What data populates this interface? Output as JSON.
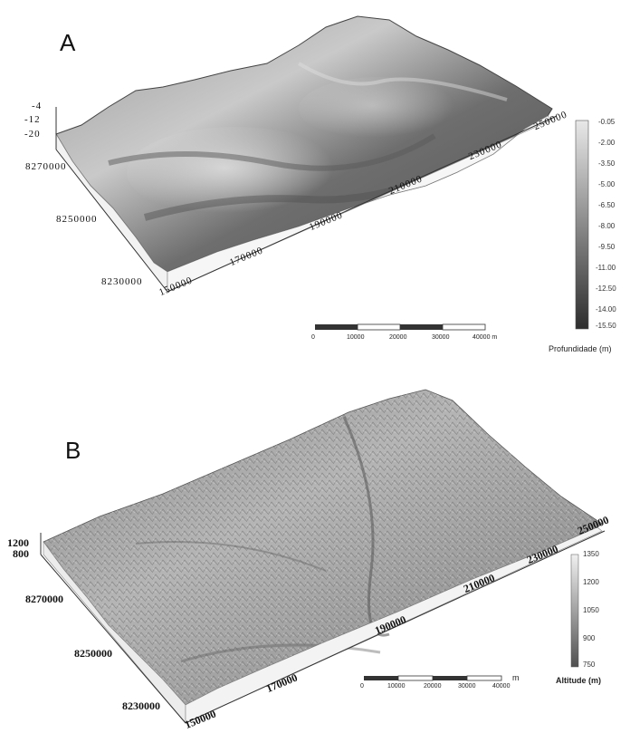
{
  "panelA": {
    "letter": "A",
    "z_ticks": [
      "-4",
      "-12",
      "-20"
    ],
    "y_ticks": [
      "8270000",
      "8250000",
      "8230000"
    ],
    "x_ticks": [
      "150000",
      "170000",
      "190000",
      "210000",
      "230000",
      "250000"
    ],
    "colorbar_ticks": [
      "-0.05",
      "-2.00",
      "-3.50",
      "-5.00",
      "-6.50",
      "-8.00",
      "-9.50",
      "-11.00",
      "-12.50",
      "-14.00",
      "-15.50"
    ],
    "colorbar_title": "Profundidade (m)",
    "scalebar_labels": [
      "0",
      "10000",
      "20000",
      "30000",
      "40000 m"
    ],
    "colors": {
      "surface": "#7b7b7b",
      "colorbar_top": "#e8e8e8",
      "colorbar_bottom": "#2d2d2d"
    }
  },
  "panelB": {
    "letter": "B",
    "z_ticks": [
      "1200",
      "800"
    ],
    "y_ticks": [
      "8270000",
      "8250000",
      "8230000"
    ],
    "x_ticks": [
      "150000",
      "170000",
      "190000",
      "210000",
      "230000",
      "250000"
    ],
    "colorbar_ticks": [
      "1350",
      "1200",
      "1050",
      "900",
      "750"
    ],
    "colorbar_title": "Altitude (m)",
    "scalebar_labels": [
      "0",
      "10000",
      "20000",
      "30000",
      "40000",
      "m"
    ],
    "colors": {
      "surface": "#a6a6a6",
      "colorbar_top": "#f0f0f0",
      "colorbar_bottom": "#505050"
    }
  }
}
